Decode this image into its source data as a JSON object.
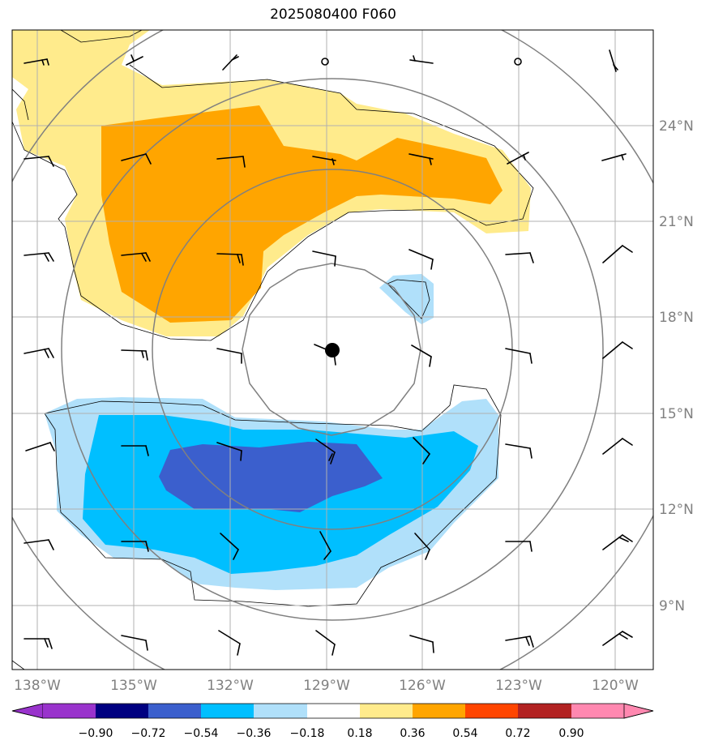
{
  "title": "2025080400 F060",
  "lon_ticks": [
    "138°W",
    "135°W",
    "132°W",
    "129°W",
    "126°W",
    "123°W",
    "120°W"
  ],
  "lat_ticks": [
    "24°N",
    "21°N",
    "18°N",
    "15°N",
    "12°N",
    "9°N"
  ],
  "colorbar": {
    "ticks": [
      "−0.90",
      "−0.72",
      "−0.54",
      "−0.36",
      "−0.18",
      "0.18",
      "0.36",
      "0.54",
      "0.72",
      "0.90"
    ],
    "colors": [
      "#9933cc",
      "#000080",
      "#3b5fcd",
      "#00bfff",
      "#b0e0fa",
      "#ffffff",
      "#ffeb8c",
      "#ffa500",
      "#ff4500",
      "#b22222",
      "#ff88b0"
    ]
  },
  "colors": {
    "grid": "#b0b0b0",
    "range_rings": "#808080",
    "contour": "#000000"
  },
  "storm_center": {
    "label": "storm-center",
    "lon": -128.8,
    "lat": 17.0
  }
}
